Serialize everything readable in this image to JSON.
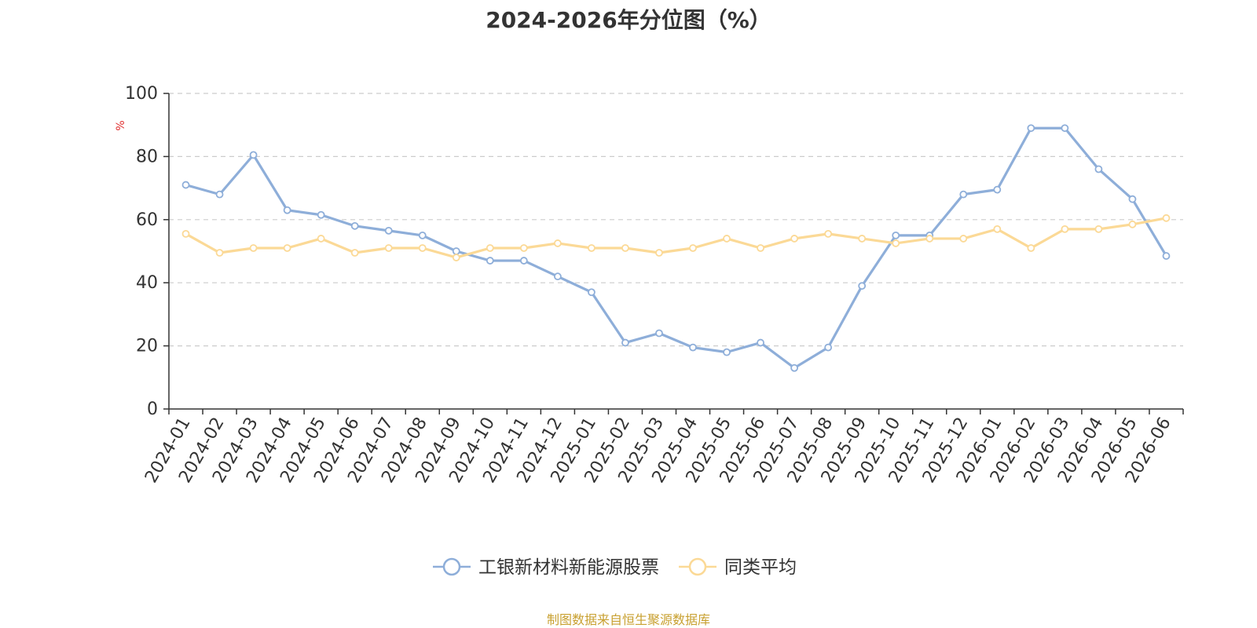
{
  "title": "2024-2026年分位图（%）",
  "source_note": "制图数据来自恒生聚源数据库",
  "chart_data": {
    "type": "line",
    "title": "2024-2026年分位图（%）",
    "ylabel": "%",
    "ylim": [
      0,
      100
    ],
    "yticks": [
      0,
      20,
      40,
      60,
      80,
      100
    ],
    "grid": true,
    "legend_position": "bottom",
    "categories": [
      "2024-01",
      "2024-02",
      "2024-03",
      "2024-04",
      "2024-05",
      "2024-06",
      "2024-07",
      "2024-08",
      "2024-09",
      "2024-10",
      "2024-11",
      "2024-12",
      "2025-01",
      "2025-02",
      "2025-03",
      "2025-04",
      "2025-05",
      "2025-06",
      "2025-07",
      "2025-08",
      "2025-09",
      "2025-10",
      "2025-11",
      "2025-12",
      "2026-01",
      "2026-02",
      "2026-03",
      "2026-04",
      "2026-05",
      "2026-06"
    ],
    "series": [
      {
        "name": "工银新材料新能源股票",
        "color": "#8eaed9",
        "values": [
          71,
          68,
          80.5,
          63,
          61.5,
          58,
          56.5,
          55,
          50,
          47,
          47,
          42,
          37,
          21,
          24,
          19.5,
          18,
          21,
          13,
          19.5,
          39,
          55,
          55,
          68,
          69.5,
          89,
          89,
          76,
          66.5,
          48.5
        ]
      },
      {
        "name": "同类平均",
        "color": "#fbd996",
        "values": [
          55.5,
          49.5,
          51,
          51,
          54,
          49.5,
          51,
          51,
          48,
          51,
          51,
          52.5,
          51,
          51,
          49.5,
          51,
          54,
          51,
          54,
          55.5,
          54,
          52.5,
          54,
          54,
          57,
          51,
          57,
          57,
          58.5,
          60.5
        ]
      }
    ]
  }
}
